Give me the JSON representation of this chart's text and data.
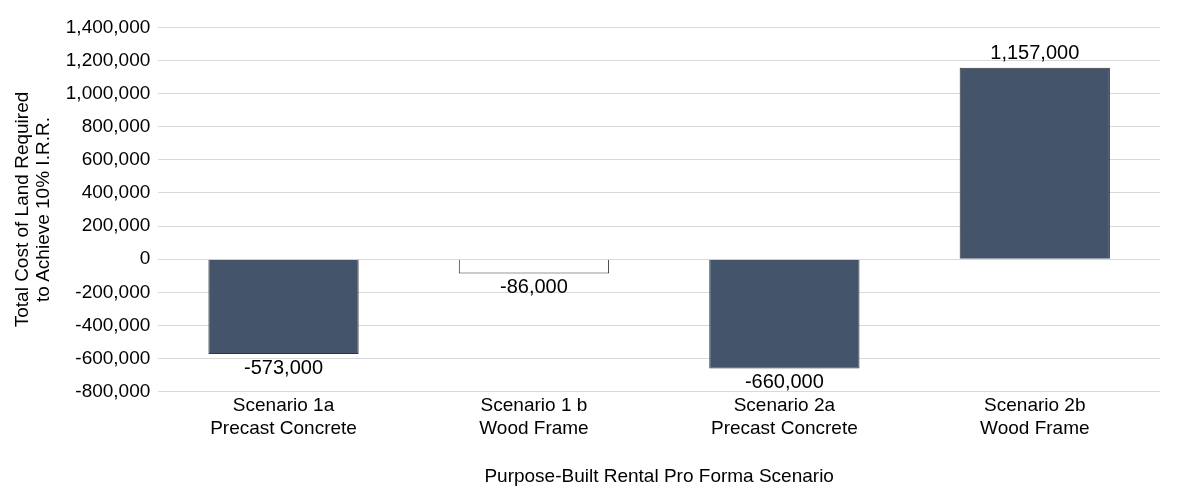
{
  "chart_data": {
    "type": "bar",
    "xlabel": "Purpose-Built Rental Pro Forma Scenario",
    "ylabel": "Total Cost of Land Required\nto Achieve 10% I.R.R.",
    "categories": [
      "Scenario 1a\nPrecast Concrete",
      "Scenario 1 b\nWood Frame",
      "Scenario 2a\nPrecast Concrete",
      "Scenario 2b\nWood Frame"
    ],
    "values": [
      -573000,
      -86000,
      -660000,
      1157000
    ],
    "value_labels": [
      "-573,000",
      "-86,000",
      "-660,000",
      "1,157,000"
    ],
    "colors": [
      "#44546a",
      "#ffffff",
      "#44546a",
      "#44546a"
    ],
    "ylim": [
      -800000,
      1400000
    ],
    "yticks": [
      {
        "value": -800000,
        "label": "-800,000"
      },
      {
        "value": -600000,
        "label": "-600,000"
      },
      {
        "value": -400000,
        "label": "-400,000"
      },
      {
        "value": -200000,
        "label": "-200,000"
      },
      {
        "value": 0,
        "label": "0"
      },
      {
        "value": 200000,
        "label": "200,000"
      },
      {
        "value": 400000,
        "label": "400,000"
      },
      {
        "value": 600000,
        "label": "600,000"
      },
      {
        "value": 800000,
        "label": "800,000"
      },
      {
        "value": 1000000,
        "label": "1,000,000"
      },
      {
        "value": 1200000,
        "label": "1,200,000"
      },
      {
        "value": 1400000,
        "label": "1,400,000"
      }
    ],
    "grid": "y",
    "legend": false
  }
}
